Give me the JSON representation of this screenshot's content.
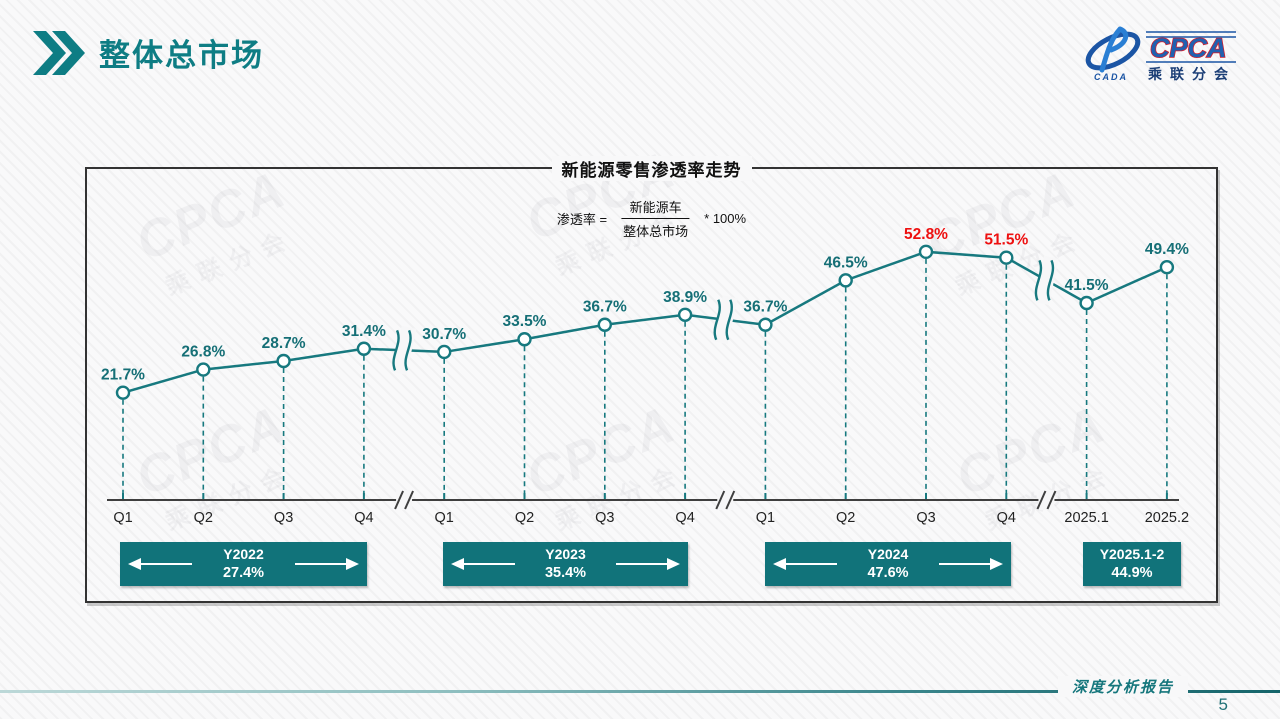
{
  "header": {
    "title": "整体总市场"
  },
  "logo": {
    "name": "CPCA",
    "subtitle": "乘联分会",
    "cada": "CADA"
  },
  "watermark": {
    "line1": "CPCA",
    "line2": "乘联分会"
  },
  "chart": {
    "title": "新能源零售渗透率走势",
    "formula": {
      "lhs": "渗透率 =",
      "numerator": "新能源车",
      "denominator": "整体总市场",
      "rhs": "* 100%"
    }
  },
  "chart_data": {
    "type": "line",
    "title": "新能源零售渗透率走势",
    "x": [
      "Q1",
      "Q2",
      "Q3",
      "Q4",
      "Q1",
      "Q2",
      "Q3",
      "Q4",
      "Q1",
      "Q2",
      "Q3",
      "Q4",
      "2025.1",
      "2025.2"
    ],
    "values": [
      21.7,
      26.8,
      28.7,
      31.4,
      30.7,
      33.5,
      36.7,
      38.9,
      36.7,
      46.5,
      52.8,
      51.5,
      41.5,
      49.4
    ],
    "value_labels": [
      "21.7%",
      "26.8%",
      "28.7%",
      "31.4%",
      "30.7%",
      "33.5%",
      "36.7%",
      "38.9%",
      "36.7%",
      "46.5%",
      "52.8%",
      "51.5%",
      "41.5%",
      "49.4%"
    ],
    "red_label_indices": [
      10,
      11
    ],
    "axis_breaks_after_index": [
      3,
      7,
      11
    ],
    "xlabel": "",
    "ylabel": "",
    "ylim": [
      18,
      58
    ],
    "grid": false,
    "legend": "none",
    "line_color": "#17797f",
    "label_color": "#156f76",
    "red_color": "#ee1010",
    "marker": "open-circle",
    "year_groups": [
      {
        "label": "Y2022",
        "value": "27.4%",
        "arrows": true
      },
      {
        "label": "Y2023",
        "value": "35.4%",
        "arrows": true
      },
      {
        "label": "Y2024",
        "value": "47.6%",
        "arrows": true
      },
      {
        "label": "Y2025.1-2",
        "value": "44.9%",
        "arrows": false
      }
    ]
  },
  "footer": {
    "report_label": "深度分析报告",
    "page_number": "5"
  }
}
